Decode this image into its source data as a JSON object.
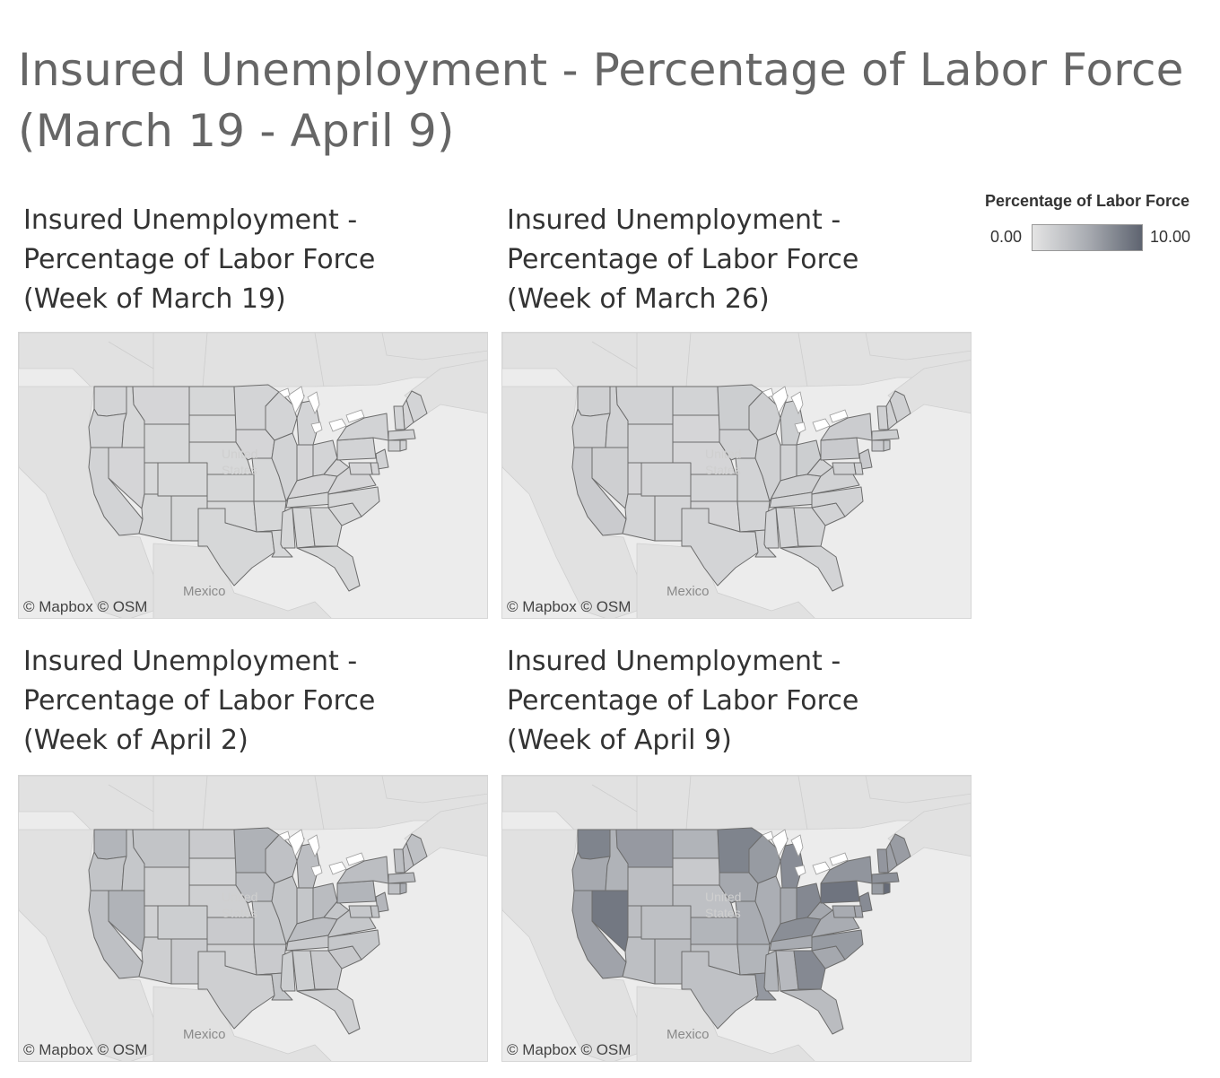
{
  "dashboard": {
    "title_line1": "Insured Unemployment - Percentage of Labor Force",
    "title_line2": "(March 19 - April 9)"
  },
  "legend": {
    "title": "Percentage of Labor Force",
    "min_label": "0.00",
    "max_label": "10.00",
    "color_low": "#e4e4e4",
    "color_high": "#5e6470"
  },
  "map_labels": {
    "country_us_line1": "United",
    "country_us_line2": "States",
    "country_mexico": "Mexico",
    "attribution": "© Mapbox  © OSM"
  },
  "panels": [
    {
      "title_line1": "Insured Unemployment -",
      "title_line2": "Percentage of Labor Force",
      "title_line3": "(Week of March 19)",
      "regions": {
        "WA": 1.4,
        "OR": 1.4,
        "CA": 1.5,
        "NV": 1.3,
        "ID": 1.2,
        "MT": 1.3,
        "WY": 1.2,
        "UT": 1.1,
        "CO": 1.1,
        "AZ": 1.2,
        "NM": 1.2,
        "ND": 1.2,
        "SD": 1.1,
        "NE": 1.1,
        "KS": 1.2,
        "OK": 1.1,
        "TX": 1.2,
        "MN": 1.4,
        "IA": 1.3,
        "MO": 1.2,
        "AR": 1.2,
        "LA": 1.2,
        "WI": 1.4,
        "IL": 1.5,
        "MI": 1.4,
        "IN": 1.3,
        "OH": 1.4,
        "KY": 1.3,
        "TN": 1.2,
        "MS": 1.2,
        "AL": 1.2,
        "GA": 1.2,
        "FL": 1.2,
        "SC": 1.2,
        "NC": 1.2,
        "VA": 1.3,
        "WV": 1.3,
        "PA": 1.5,
        "NY": 1.5,
        "ME": 1.4,
        "NH": 1.3,
        "VT": 1.4,
        "MA": 1.4,
        "CT": 1.5,
        "RI": 1.6,
        "NJ": 1.6,
        "DE": 1.3,
        "MD": 1.3
      }
    },
    {
      "title_line1": "Insured Unemployment -",
      "title_line2": "Percentage of Labor Force",
      "title_line3": "(Week of March 26)",
      "regions": {
        "WA": 1.8,
        "OR": 1.7,
        "CA": 2.2,
        "NV": 1.9,
        "ID": 1.6,
        "MT": 1.6,
        "WY": 1.4,
        "UT": 1.3,
        "CO": 1.4,
        "AZ": 1.4,
        "NM": 1.4,
        "ND": 1.5,
        "SD": 1.3,
        "NE": 1.3,
        "KS": 1.4,
        "OK": 1.3,
        "TX": 1.4,
        "MN": 2.0,
        "IA": 1.7,
        "MO": 1.5,
        "AR": 1.5,
        "LA": 1.6,
        "WI": 1.9,
        "IL": 1.8,
        "MI": 2.0,
        "IN": 1.7,
        "OH": 2.0,
        "KY": 1.8,
        "TN": 1.5,
        "MS": 1.4,
        "AL": 1.4,
        "GA": 1.5,
        "FL": 1.4,
        "SC": 1.5,
        "NC": 1.6,
        "VA": 1.6,
        "WV": 1.6,
        "PA": 2.3,
        "NY": 2.1,
        "ME": 1.8,
        "NH": 1.7,
        "VT": 1.8,
        "MA": 2.0,
        "CT": 2.1,
        "RI": 2.6,
        "NJ": 2.4,
        "DE": 1.7,
        "MD": 1.7
      }
    },
    {
      "title_line1": "Insured Unemployment -",
      "title_line2": "Percentage of Labor Force",
      "title_line3": "(Week of April 2)",
      "regions": {
        "WA": 4.2,
        "OR": 2.9,
        "CA": 3.2,
        "NV": 4.4,
        "ID": 2.6,
        "MT": 2.9,
        "WY": 1.8,
        "UT": 1.8,
        "CO": 2.0,
        "AZ": 1.9,
        "NM": 2.2,
        "ND": 2.3,
        "SD": 1.5,
        "NE": 1.8,
        "KS": 2.3,
        "OK": 1.8,
        "TX": 1.9,
        "MN": 4.5,
        "IA": 3.3,
        "MO": 2.6,
        "AR": 2.3,
        "LA": 2.8,
        "WI": 3.1,
        "IL": 2.8,
        "MI": 3.4,
        "IN": 2.7,
        "OH": 3.6,
        "KY": 3.4,
        "TN": 2.4,
        "MS": 2.0,
        "AL": 2.0,
        "GA": 2.4,
        "FL": 1.8,
        "SC": 2.5,
        "NC": 2.6,
        "VA": 2.6,
        "WV": 2.7,
        "PA": 4.2,
        "NY": 3.4,
        "ME": 3.2,
        "NH": 3.0,
        "VT": 3.4,
        "MA": 3.6,
        "CT": 3.2,
        "RI": 5.0,
        "NJ": 4.1,
        "DE": 2.8,
        "MD": 2.6
      }
    },
    {
      "title_line1": "Insured Unemployment -",
      "title_line2": "Percentage of Labor Force",
      "title_line3": "(Week of April 9)",
      "regions": {
        "WA": 7.8,
        "OR": 5.2,
        "CA": 5.6,
        "NV": 8.6,
        "ID": 4.4,
        "MT": 6.3,
        "WY": 3.4,
        "UT": 3.4,
        "CO": 3.2,
        "AZ": 3.3,
        "NM": 3.6,
        "ND": 4.3,
        "SD": 2.4,
        "NE": 3.2,
        "KS": 4.2,
        "OK": 3.2,
        "TX": 3.1,
        "MN": 7.8,
        "IA": 5.3,
        "MO": 5.0,
        "AR": 4.2,
        "LA": 6.4,
        "WI": 6.2,
        "IL": 4.8,
        "MI": 7.2,
        "IN": 5.3,
        "OH": 7.5,
        "KY": 7.1,
        "TN": 5.1,
        "MS": 4.2,
        "AL": 3.8,
        "GA": 7.4,
        "FL": 3.6,
        "SC": 5.3,
        "NC": 6.2,
        "VA": 5.0,
        "WV": 5.3,
        "PA": 8.9,
        "NY": 6.6,
        "ME": 6.1,
        "NH": 5.8,
        "VT": 6.5,
        "MA": 6.9,
        "CT": 6.2,
        "RI": 9.5,
        "NJ": 7.3,
        "DE": 5.4,
        "MD": 5.1
      }
    }
  ]
}
